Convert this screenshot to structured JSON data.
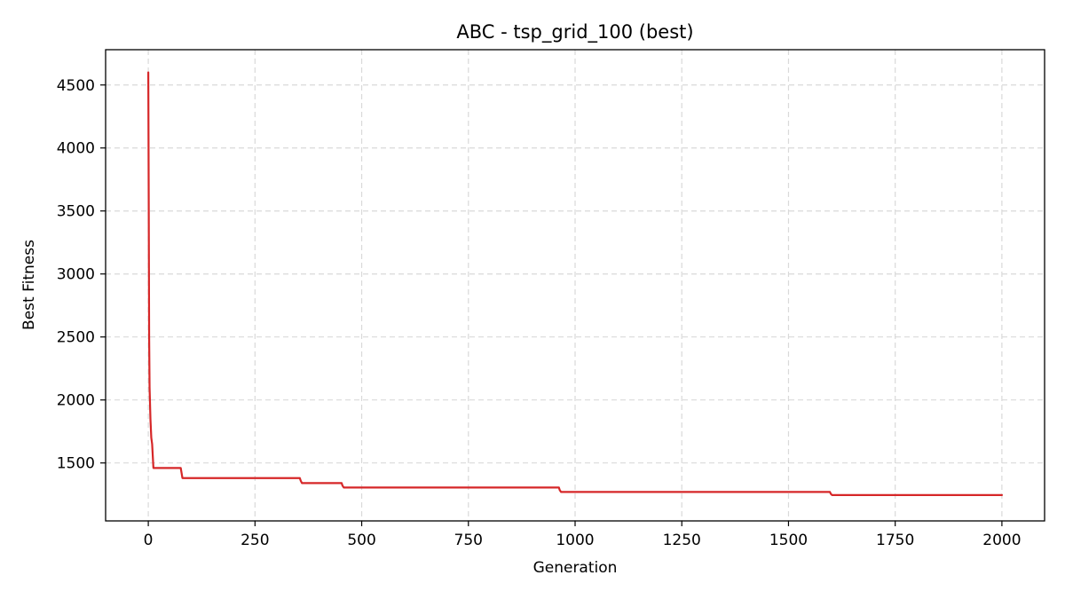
{
  "chart_data": {
    "type": "line",
    "title": "ABC - tsp_grid_100 (best)",
    "xlabel": "Generation",
    "ylabel": "Best Fitness",
    "xlim": [
      -100,
      2100
    ],
    "ylim": [
      1040,
      4780
    ],
    "xticks": [
      0,
      250,
      500,
      750,
      1000,
      1250,
      1500,
      1750,
      2000
    ],
    "yticks": [
      1500,
      2000,
      2500,
      3000,
      3500,
      4000,
      4500
    ],
    "grid": true,
    "legend": "none",
    "series": [
      {
        "color": "#d62728",
        "x": [
          0,
          1,
          2,
          3,
          5,
          7,
          9,
          12,
          15,
          76,
          78,
          80,
          355,
          357,
          360,
          453,
          455,
          458,
          962,
          964,
          967,
          1597,
          1599,
          1602,
          2000
        ],
        "y": [
          4600,
          3600,
          2500,
          2100,
          1850,
          1700,
          1650,
          1460,
          1460,
          1460,
          1420,
          1380,
          1380,
          1360,
          1340,
          1340,
          1320,
          1305,
          1305,
          1285,
          1270,
          1270,
          1255,
          1245,
          1245
        ]
      }
    ]
  }
}
